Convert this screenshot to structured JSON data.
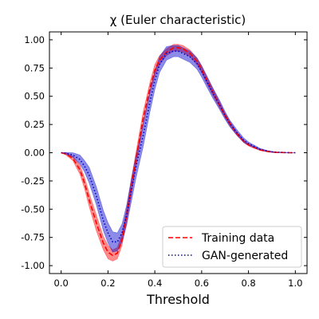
{
  "chart_data": {
    "type": "line",
    "title": "χ (Euler characteristic)",
    "xlabel": "Threshold",
    "ylabel": "",
    "xlim": [
      -0.05,
      1.05
    ],
    "ylim": [
      -1.07,
      1.07
    ],
    "xticks": [
      "0.0",
      "0.2",
      "0.4",
      "0.6",
      "0.8",
      "1.0"
    ],
    "yticks": [
      "1.00",
      "0.75",
      "0.50",
      "0.25",
      "0.00",
      "-0.25",
      "-0.50",
      "-0.75",
      "-1.00"
    ],
    "grid": false,
    "legend_position": "bottom-right",
    "x": [
      0.0,
      0.02,
      0.05,
      0.08,
      0.1,
      0.12,
      0.15,
      0.18,
      0.2,
      0.22,
      0.24,
      0.26,
      0.28,
      0.3,
      0.32,
      0.35,
      0.38,
      0.4,
      0.42,
      0.45,
      0.48,
      0.5,
      0.52,
      0.55,
      0.58,
      0.6,
      0.62,
      0.65,
      0.68,
      0.7,
      0.72,
      0.75,
      0.78,
      0.8,
      0.82,
      0.85,
      0.88,
      0.9,
      0.92,
      0.95,
      0.98,
      1.0
    ],
    "series": [
      {
        "name": "Training data",
        "color": "#ff0000",
        "style": "dashed",
        "values": [
          0.0,
          -0.01,
          -0.05,
          -0.15,
          -0.27,
          -0.42,
          -0.62,
          -0.8,
          -0.88,
          -0.91,
          -0.89,
          -0.77,
          -0.55,
          -0.3,
          -0.05,
          0.3,
          0.58,
          0.73,
          0.82,
          0.89,
          0.93,
          0.93,
          0.92,
          0.88,
          0.81,
          0.74,
          0.65,
          0.53,
          0.41,
          0.33,
          0.26,
          0.17,
          0.1,
          0.07,
          0.05,
          0.025,
          0.012,
          0.006,
          0.003,
          0.001,
          0.0,
          0.0
        ],
        "band": [
          0.0,
          0.01,
          0.02,
          0.04,
          0.05,
          0.06,
          0.07,
          0.06,
          0.06,
          0.05,
          0.05,
          0.05,
          0.06,
          0.07,
          0.06,
          0.06,
          0.05,
          0.05,
          0.04,
          0.03,
          0.03,
          0.03,
          0.03,
          0.03,
          0.03,
          0.03,
          0.03,
          0.03,
          0.025,
          0.02,
          0.02,
          0.015,
          0.01,
          0.01,
          0.008,
          0.006,
          0.004,
          0.003,
          0.002,
          0.001,
          0.0,
          0.0
        ]
      },
      {
        "name": "GAN-generated",
        "color": "#0000cc",
        "style": "dotted",
        "values": [
          0.0,
          -0.005,
          -0.02,
          -0.06,
          -0.12,
          -0.2,
          -0.38,
          -0.6,
          -0.71,
          -0.79,
          -0.79,
          -0.71,
          -0.55,
          -0.33,
          -0.12,
          0.15,
          0.46,
          0.64,
          0.78,
          0.88,
          0.9,
          0.9,
          0.88,
          0.85,
          0.79,
          0.72,
          0.64,
          0.52,
          0.41,
          0.33,
          0.26,
          0.18,
          0.11,
          0.08,
          0.06,
          0.03,
          0.015,
          0.008,
          0.004,
          0.002,
          0.0,
          0.0
        ],
        "band": [
          0.0,
          0.008,
          0.02,
          0.04,
          0.05,
          0.07,
          0.08,
          0.09,
          0.09,
          0.09,
          0.08,
          0.08,
          0.09,
          0.1,
          0.1,
          0.1,
          0.09,
          0.08,
          0.07,
          0.06,
          0.05,
          0.05,
          0.05,
          0.05,
          0.05,
          0.05,
          0.05,
          0.045,
          0.04,
          0.035,
          0.03,
          0.025,
          0.02,
          0.015,
          0.012,
          0.008,
          0.005,
          0.004,
          0.003,
          0.002,
          0.001,
          0.0
        ]
      }
    ]
  }
}
